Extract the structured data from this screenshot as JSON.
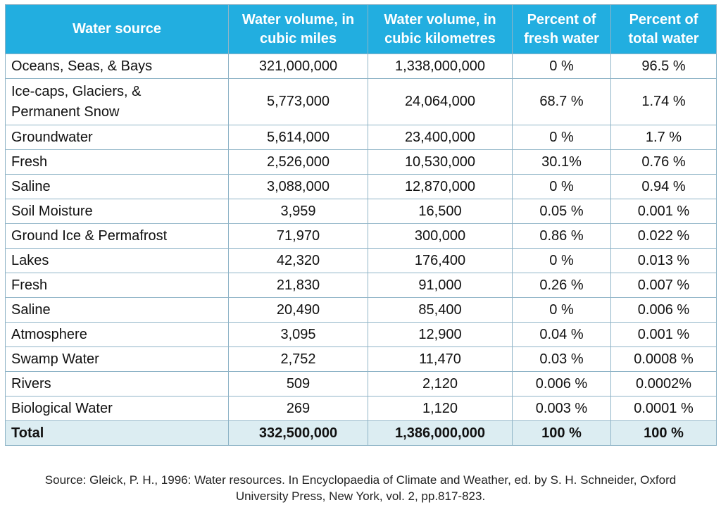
{
  "table": {
    "headers": [
      "Water source",
      "Water volume, in\ncubic miles",
      "Water volume, in\ncubic kilometres",
      "Percent of\nfresh water",
      "Percent of\ntotal water"
    ],
    "rows": [
      [
        "Oceans, Seas, & Bays",
        "321,000,000",
        "1,338,000,000",
        "0 %",
        "96.5 %"
      ],
      [
        "Ice-caps, Glaciers, &\nPermanent Snow",
        "5,773,000",
        "24,064,000",
        "68.7 %",
        "1.74 %"
      ],
      [
        "Groundwater",
        "5,614,000",
        "23,400,000",
        "0 %",
        "1.7 %"
      ],
      [
        "Fresh",
        "2,526,000",
        "10,530,000",
        "30.1%",
        "0.76 %"
      ],
      [
        " Saline",
        "3,088,000",
        "12,870,000",
        "0 %",
        "0.94 %"
      ],
      [
        "Soil Moisture",
        "3,959",
        "16,500",
        "0.05 %",
        "0.001 %"
      ],
      [
        "Ground Ice & Permafrost",
        "71,970",
        "300,000",
        "0.86 %",
        "0.022 %"
      ],
      [
        "Lakes",
        "42,320",
        "176,400",
        "0 %",
        "0.013 %"
      ],
      [
        "Fresh",
        "21,830",
        "91,000",
        "0.26 %",
        "0.007 %"
      ],
      [
        "Saline",
        "20,490",
        "85,400",
        "0 %",
        "0.006 %"
      ],
      [
        "Atmosphere",
        "3,095",
        "12,900",
        "0.04 %",
        "0.001 %"
      ],
      [
        "Swamp Water",
        "2,752",
        "11,470",
        "0.03 %",
        "0.0008 %"
      ],
      [
        "Rivers",
        "509",
        "2,120",
        "0.006 %",
        "0.0002%"
      ],
      [
        "Biological Water",
        "269",
        "1,120",
        "0.003 %",
        "0.0001 %"
      ]
    ],
    "total": [
      "Total",
      "332,500,000",
      "1,386,000,000",
      "100 %",
      "100 %"
    ]
  },
  "source_note": {
    "line1": "Source: Gleick, P. H., 1996: Water resources. In Encyclopaedia of Climate and Weather, ed. by S. H. Schneider, Oxford",
    "line2": "University Press, New York, vol. 2, pp.817-823."
  },
  "colors": {
    "header_bg": "#22aee0",
    "total_bg": "#dcedf2",
    "border": "#8fb4c7"
  }
}
